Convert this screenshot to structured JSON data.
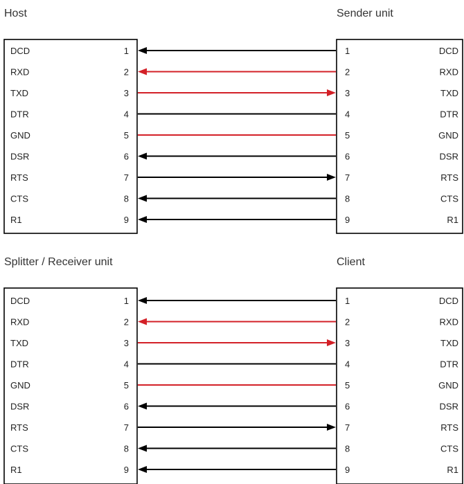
{
  "colors": {
    "signal": "#000000",
    "data": "#d32027"
  },
  "diagrams": [
    {
      "left_title": "Host",
      "right_title": "Sender unit",
      "rows": [
        {
          "signal_left": "DCD",
          "pin_left": "1",
          "pin_right": "1",
          "signal_right": "DCD",
          "direction": "to-left",
          "color": "signal"
        },
        {
          "signal_left": "RXD",
          "pin_left": "2",
          "pin_right": "2",
          "signal_right": "RXD",
          "direction": "to-left",
          "color": "data"
        },
        {
          "signal_left": "TXD",
          "pin_left": "3",
          "pin_right": "3",
          "signal_right": "TXD",
          "direction": "to-right",
          "color": "data"
        },
        {
          "signal_left": "DTR",
          "pin_left": "4",
          "pin_right": "4",
          "signal_right": "DTR",
          "direction": "none",
          "color": "signal"
        },
        {
          "signal_left": "GND",
          "pin_left": "5",
          "pin_right": "5",
          "signal_right": "GND",
          "direction": "none",
          "color": "data"
        },
        {
          "signal_left": "DSR",
          "pin_left": "6",
          "pin_right": "6",
          "signal_right": "DSR",
          "direction": "to-left",
          "color": "signal"
        },
        {
          "signal_left": "RTS",
          "pin_left": "7",
          "pin_right": "7",
          "signal_right": "RTS",
          "direction": "to-right",
          "color": "signal"
        },
        {
          "signal_left": "CTS",
          "pin_left": "8",
          "pin_right": "8",
          "signal_right": "CTS",
          "direction": "to-left",
          "color": "signal"
        },
        {
          "signal_left": "R1",
          "pin_left": "9",
          "pin_right": "9",
          "signal_right": "R1",
          "direction": "to-left",
          "color": "signal"
        }
      ]
    },
    {
      "left_title": "Splitter / Receiver unit",
      "right_title": "Client",
      "rows": [
        {
          "signal_left": "DCD",
          "pin_left": "1",
          "pin_right": "1",
          "signal_right": "DCD",
          "direction": "to-left",
          "color": "signal"
        },
        {
          "signal_left": "RXD",
          "pin_left": "2",
          "pin_right": "2",
          "signal_right": "RXD",
          "direction": "to-left",
          "color": "data"
        },
        {
          "signal_left": "TXD",
          "pin_left": "3",
          "pin_right": "3",
          "signal_right": "TXD",
          "direction": "to-right",
          "color": "data"
        },
        {
          "signal_left": "DTR",
          "pin_left": "4",
          "pin_right": "4",
          "signal_right": "DTR",
          "direction": "none",
          "color": "signal"
        },
        {
          "signal_left": "GND",
          "pin_left": "5",
          "pin_right": "5",
          "signal_right": "GND",
          "direction": "none",
          "color": "data"
        },
        {
          "signal_left": "DSR",
          "pin_left": "6",
          "pin_right": "6",
          "signal_right": "DSR",
          "direction": "to-left",
          "color": "signal"
        },
        {
          "signal_left": "RTS",
          "pin_left": "7",
          "pin_right": "7",
          "signal_right": "RTS",
          "direction": "to-right",
          "color": "signal"
        },
        {
          "signal_left": "CTS",
          "pin_left": "8",
          "pin_right": "8",
          "signal_right": "CTS",
          "direction": "to-left",
          "color": "signal"
        },
        {
          "signal_left": "R1",
          "pin_left": "9",
          "pin_right": "9",
          "signal_right": "R1",
          "direction": "to-left",
          "color": "signal"
        }
      ]
    }
  ]
}
